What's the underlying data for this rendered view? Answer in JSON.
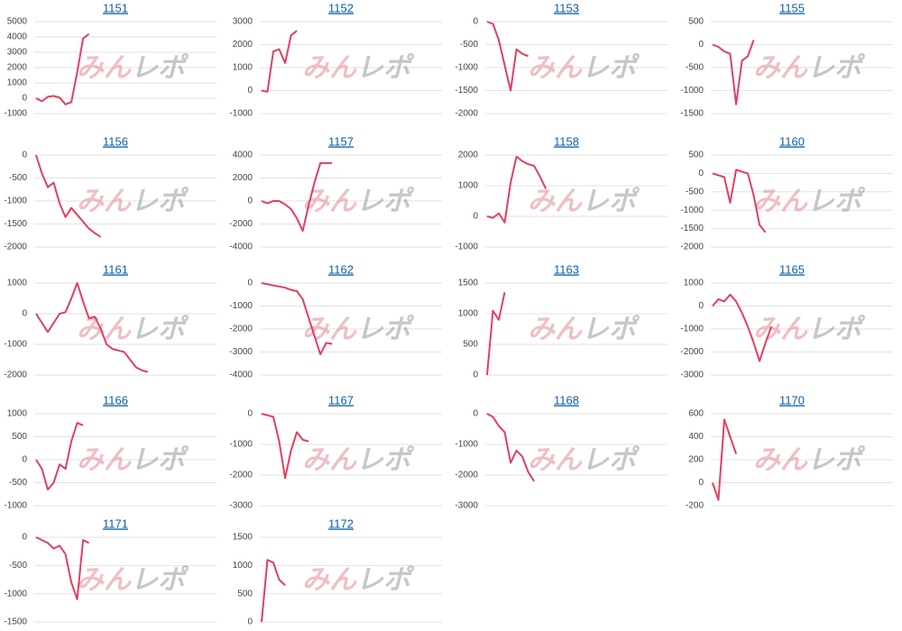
{
  "watermark": "みんレポ",
  "chart_data": [
    {
      "type": "line",
      "title": "1151",
      "color": "#e0405e",
      "grid": true,
      "ylim": [
        -1000,
        5000
      ],
      "yticks": [
        -1000,
        0,
        1000,
        2000,
        3000,
        4000,
        5000
      ],
      "values": [
        0,
        -200,
        100,
        150,
        50,
        -400,
        -250,
        1700,
        3900,
        4200
      ]
    },
    {
      "type": "line",
      "title": "1152",
      "color": "#e0405e",
      "grid": true,
      "ylim": [
        -1000,
        3000
      ],
      "yticks": [
        -1000,
        0,
        1000,
        2000,
        3000
      ],
      "values": [
        0,
        -50,
        1700,
        1800,
        1200,
        2400,
        2600
      ]
    },
    {
      "type": "line",
      "title": "1153",
      "color": "#e0405e",
      "grid": true,
      "ylim": [
        -2000,
        0
      ],
      "yticks": [
        -2000,
        -1500,
        -1000,
        -500,
        0
      ],
      "values": [
        0,
        -50,
        -400,
        -950,
        -1500,
        -600,
        -700,
        -750
      ]
    },
    {
      "type": "line",
      "title": "1155",
      "color": "#e0405e",
      "grid": true,
      "ylim": [
        -1500,
        500
      ],
      "yticks": [
        -1500,
        -1000,
        -500,
        0,
        500
      ],
      "values": [
        0,
        -50,
        -150,
        -200,
        -1300,
        -350,
        -250,
        100
      ]
    },
    {
      "type": "line",
      "title": "1156",
      "color": "#e0405e",
      "grid": true,
      "ylim": [
        -2000,
        0
      ],
      "yticks": [
        -2000,
        -1500,
        -1000,
        -500,
        0
      ],
      "values": [
        0,
        -400,
        -700,
        -600,
        -1050,
        -1350,
        -1150,
        -1300,
        -1450,
        -1600,
        -1700,
        -1780
      ]
    },
    {
      "type": "line",
      "title": "1157",
      "color": "#e0405e",
      "grid": true,
      "ylim": [
        -4000,
        4000
      ],
      "yticks": [
        -4000,
        -2000,
        0,
        2000,
        4000
      ],
      "values": [
        0,
        -200,
        0,
        0,
        -300,
        -700,
        -1500,
        -2600,
        -400,
        1600,
        3300,
        3300,
        3300
      ]
    },
    {
      "type": "line",
      "title": "1158",
      "color": "#e0405e",
      "grid": true,
      "ylim": [
        -1000,
        2000
      ],
      "yticks": [
        -1000,
        0,
        1000,
        2000
      ],
      "values": [
        0,
        -50,
        100,
        -200,
        1100,
        1950,
        1800,
        1700,
        1650,
        1300,
        900
      ]
    },
    {
      "type": "line",
      "title": "1160",
      "color": "#e0405e",
      "grid": true,
      "ylim": [
        -2000,
        500
      ],
      "yticks": [
        -2000,
        -1500,
        -1000,
        -500,
        0,
        500
      ],
      "values": [
        0,
        -50,
        -100,
        -800,
        100,
        50,
        0,
        -600,
        -1400,
        -1600
      ]
    },
    {
      "type": "line",
      "title": "1161",
      "color": "#e0405e",
      "grid": true,
      "ylim": [
        -2000,
        1000
      ],
      "yticks": [
        -2000,
        -1000,
        0,
        1000
      ],
      "values": [
        0,
        -300,
        -600,
        -300,
        0,
        50,
        500,
        1000,
        400,
        -150,
        -100,
        -500,
        -1000,
        -1150,
        -1200,
        -1250,
        -1500,
        -1750,
        -1850,
        -1900
      ]
    },
    {
      "type": "line",
      "title": "1162",
      "color": "#e0405e",
      "grid": true,
      "ylim": [
        -4000,
        0
      ],
      "yticks": [
        -4000,
        -3000,
        -2000,
        -1000,
        0
      ],
      "values": [
        0,
        -50,
        -100,
        -150,
        -200,
        -300,
        -350,
        -700,
        -1500,
        -2300,
        -3100,
        -2600,
        -2650
      ]
    },
    {
      "type": "line",
      "title": "1163",
      "color": "#e0405e",
      "grid": true,
      "ylim": [
        0,
        1500
      ],
      "yticks": [
        0,
        500,
        1000,
        1500
      ],
      "values": [
        0,
        1050,
        900,
        1350
      ]
    },
    {
      "type": "line",
      "title": "1165",
      "color": "#e0405e",
      "grid": true,
      "ylim": [
        -3000,
        1000
      ],
      "yticks": [
        -3000,
        -2000,
        -1000,
        0,
        1000
      ],
      "values": [
        0,
        300,
        200,
        500,
        200,
        -300,
        -900,
        -1600,
        -2400,
        -1600,
        -900
      ]
    },
    {
      "type": "line",
      "title": "1166",
      "color": "#e0405e",
      "grid": true,
      "ylim": [
        -1000,
        1000
      ],
      "yticks": [
        -1000,
        -500,
        0,
        500,
        1000
      ],
      "values": [
        0,
        -200,
        -650,
        -500,
        -100,
        -200,
        400,
        800,
        750
      ]
    },
    {
      "type": "line",
      "title": "1167",
      "color": "#e0405e",
      "grid": true,
      "ylim": [
        -3000,
        0
      ],
      "yticks": [
        -3000,
        -2000,
        -1000,
        0
      ],
      "values": [
        0,
        -50,
        -100,
        -900,
        -2100,
        -1200,
        -600,
        -850,
        -900
      ]
    },
    {
      "type": "line",
      "title": "1168",
      "color": "#e0405e",
      "grid": true,
      "ylim": [
        -3000,
        0
      ],
      "yticks": [
        -3000,
        -2000,
        -1000,
        0
      ],
      "values": [
        0,
        -100,
        -400,
        -600,
        -1600,
        -1200,
        -1400,
        -1900,
        -2200
      ]
    },
    {
      "type": "line",
      "title": "1170",
      "color": "#e0405e",
      "grid": true,
      "ylim": [
        -200,
        600
      ],
      "yticks": [
        -200,
        0,
        200,
        400,
        600
      ],
      "values": [
        0,
        -150,
        550,
        400,
        250
      ]
    },
    {
      "type": "line",
      "title": "1171",
      "color": "#e0405e",
      "grid": true,
      "ylim": [
        -1500,
        0
      ],
      "yticks": [
        -1500,
        -1000,
        -500,
        0
      ],
      "values": [
        0,
        -50,
        -100,
        -200,
        -150,
        -300,
        -800,
        -1100,
        -50,
        -100
      ]
    },
    {
      "type": "line",
      "title": "1172",
      "color": "#e0405e",
      "grid": true,
      "ylim": [
        0,
        1500
      ],
      "yticks": [
        0,
        500,
        1000,
        1500
      ],
      "values": [
        0,
        1100,
        1050,
        750,
        650
      ]
    }
  ]
}
